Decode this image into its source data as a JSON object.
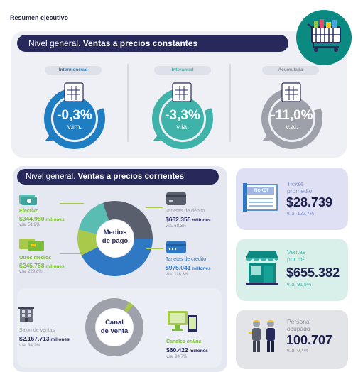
{
  "title": "Resumen ejecutivo",
  "top": {
    "header_normal": "Nivel general. ",
    "header_bold": "Ventas a precios constantes",
    "metrics": [
      {
        "pill": "Intermensual",
        "value": "-0,3%",
        "sub": "v.im.",
        "color": "#1f7dc2",
        "level": 0.85
      },
      {
        "pill": "Interanual",
        "value": "-3,3%",
        "sub": "v.ia.",
        "color": "#3fb3aa",
        "level": 0.85
      },
      {
        "pill": "Acumulada",
        "value": "-11,0%",
        "sub": "v.ai.",
        "color": "#9ea1a9",
        "level": 0.85
      }
    ]
  },
  "corrientes": {
    "header_normal": "Nivel general. ",
    "header_bold": "Ventas a precios corrientes",
    "medios_label_1": "Medios",
    "medios_label_2": "de pago",
    "efectivo": {
      "label": "Efectivo",
      "value": "$344.980",
      "unit": " millones",
      "via": "v.ia. 51,2%"
    },
    "otros": {
      "label": "Otros medios",
      "value": "$245.758",
      "unit": " millones",
      "via": "v.ia. 229,8%"
    },
    "debito": {
      "label": "Tarjetas de débito",
      "value": "$662.355",
      "unit": " millones",
      "via": "v.ia. 68,3%"
    },
    "credito": {
      "label": "Tarjetas de crédito",
      "value": "$975.041",
      "unit": " millones",
      "via": "v.ia. 116,3%"
    },
    "canal_label_1": "Canal",
    "canal_label_2": "de venta",
    "salon": {
      "label": "Salón de ventas",
      "value": "$2.167.713",
      "unit": " millones",
      "via": "v.ia. 94,2%"
    },
    "online": {
      "label_a": "Canales ",
      "label_b": "online",
      "value": "$60.422",
      "unit": " millones",
      "via": "v.ia. 94,7%"
    }
  },
  "cards": {
    "ticket": {
      "label_1": "Ticket",
      "label_2": "promedio",
      "value": "$28.739",
      "via": "v.ia. 122,7%",
      "icon_text": "TICKET"
    },
    "ventas_m2": {
      "label_1": "Ventas",
      "label_2": "por m²",
      "value": "$655.382",
      "via": "v.ia. 91,5%"
    },
    "personal": {
      "label_1": "Personal",
      "label_2": "ocupado",
      "value": "100.707",
      "via": "v.ia. 0,4%"
    }
  }
}
